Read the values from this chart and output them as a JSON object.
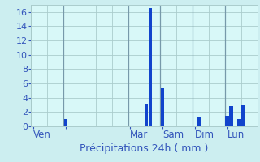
{
  "xlabel": "Précipitations 24h ( mm )",
  "background_color": "#cceef0",
  "plot_bg_color": "#d8f8f8",
  "bar_color": "#1144cc",
  "ylim": [
    0,
    17
  ],
  "yticks": [
    0,
    2,
    4,
    6,
    8,
    10,
    12,
    14,
    16
  ],
  "num_slots": 56,
  "bar_values": [
    0,
    0,
    0,
    0,
    0,
    0,
    0,
    0,
    1.0,
    0,
    0,
    0,
    0,
    0,
    0,
    0,
    0,
    0,
    0,
    0,
    0,
    0,
    0,
    0,
    0,
    0,
    0,
    0,
    3.1,
    16.5,
    0,
    0,
    5.3,
    0,
    0,
    0,
    0,
    0,
    0,
    0,
    0,
    1.4,
    0,
    0,
    0,
    0,
    0,
    0,
    1.5,
    2.8,
    0,
    1.0,
    3.0,
    0,
    0,
    0
  ],
  "day_tick_positions": [
    0,
    8,
    24,
    32,
    40,
    48
  ],
  "day_tick_labels": [
    "Ven",
    "",
    "Mar",
    "Sam",
    "Dim",
    "Lun"
  ],
  "vline_positions": [
    0,
    8,
    24,
    32,
    40,
    48
  ],
  "grid_minor_positions": [
    4,
    12,
    16,
    20,
    28,
    36,
    44,
    52
  ],
  "grid_color": "#aacccc",
  "vline_color": "#7799aa",
  "xlabel_color": "#3355bb",
  "tick_color": "#3355bb",
  "label_fontsize": 8.5,
  "ytick_fontsize": 8
}
